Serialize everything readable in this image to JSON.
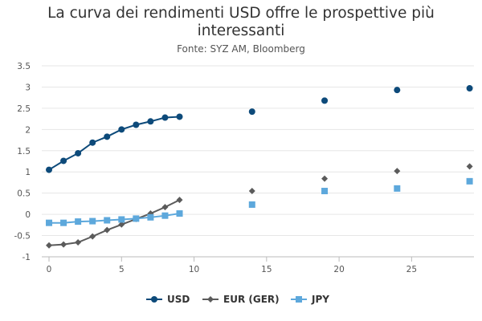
{
  "chart_data": {
    "type": "scatter",
    "title": "La curva dei rendimenti USD offre le prospettive più interessanti",
    "title_lines": [
      "La curva dei rendimenti USD offre le prospettive più",
      "interessanti"
    ],
    "subtitle": "Fonte: SYZ AM, Bloomberg",
    "xlabel": "",
    "ylabel": "",
    "xlim": [
      -0.5,
      29.3
    ],
    "ylim": [
      -1,
      3.5
    ],
    "x_ticks": [
      0,
      5,
      10,
      15,
      20,
      25
    ],
    "y_ticks": [
      -1,
      -0.5,
      0,
      0.5,
      1,
      1.5,
      2,
      2.5,
      3,
      3.5
    ],
    "grid": "horizontal",
    "legend_position": "bottom",
    "series": [
      {
        "name": "USD",
        "color": "#0d4a7a",
        "marker": "circle",
        "line_points": [
          [
            0,
            1.05
          ],
          [
            1,
            1.26
          ],
          [
            2,
            1.44
          ],
          [
            3,
            1.69
          ],
          [
            4,
            1.83
          ],
          [
            5,
            2.0
          ],
          [
            6,
            2.11
          ],
          [
            7,
            2.19
          ],
          [
            8,
            2.28
          ],
          [
            9,
            2.3
          ]
        ],
        "points": [
          [
            14,
            2.42
          ],
          [
            19,
            2.68
          ],
          [
            24,
            2.93
          ],
          [
            29,
            2.97
          ]
        ]
      },
      {
        "name": "EUR (GER)",
        "color": "#5b5b5b",
        "marker": "diamond",
        "line_points": [
          [
            0,
            -0.73
          ],
          [
            1,
            -0.71
          ],
          [
            2,
            -0.66
          ],
          [
            3,
            -0.52
          ],
          [
            4,
            -0.37
          ],
          [
            5,
            -0.24
          ],
          [
            6,
            -0.11
          ],
          [
            7,
            0.02
          ],
          [
            8,
            0.17
          ],
          [
            9,
            0.34
          ]
        ],
        "points": [
          [
            14,
            0.55
          ],
          [
            19,
            0.84
          ],
          [
            24,
            1.02
          ],
          [
            29,
            1.13
          ]
        ]
      },
      {
        "name": "JPY",
        "color": "#5da8dc",
        "marker": "square",
        "line_points": [
          [
            0,
            -0.2
          ],
          [
            1,
            -0.2
          ],
          [
            2,
            -0.17
          ],
          [
            3,
            -0.16
          ],
          [
            4,
            -0.14
          ],
          [
            5,
            -0.12
          ],
          [
            6,
            -0.1
          ],
          [
            7,
            -0.07
          ],
          [
            8,
            -0.03
          ],
          [
            9,
            0.02
          ]
        ],
        "points": [
          [
            14,
            0.23
          ],
          [
            19,
            0.55
          ],
          [
            24,
            0.61
          ],
          [
            29,
            0.78
          ]
        ]
      }
    ]
  }
}
